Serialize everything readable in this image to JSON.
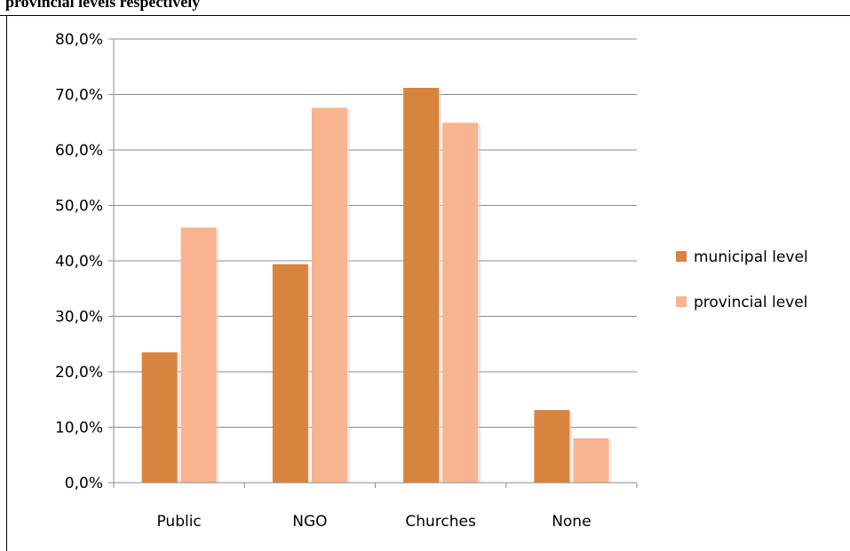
{
  "caption": "provincial levels respectively",
  "chart_data": {
    "type": "bar",
    "title": "",
    "xlabel": "",
    "ylabel": "",
    "categories": [
      "Public",
      "NGO",
      "Churches",
      "None"
    ],
    "series": [
      {
        "name": "municipal level",
        "values": [
          23.5,
          39.4,
          71.2,
          13.1
        ],
        "color": "#D9843E"
      },
      {
        "name": "provincial level",
        "values": [
          46.0,
          67.6,
          64.9,
          8.0
        ],
        "color": "#F7B48E"
      }
    ],
    "ylim": [
      0,
      80
    ],
    "yticks": [
      0,
      10,
      20,
      30,
      40,
      50,
      60,
      70,
      80
    ],
    "ytick_labels": [
      "0,0%",
      "10,0%",
      "20,0%",
      "30,0%",
      "40,0%",
      "50,0%",
      "60,0%",
      "70,0%",
      "80,0%"
    ],
    "grid": true,
    "legend_position": "right"
  }
}
